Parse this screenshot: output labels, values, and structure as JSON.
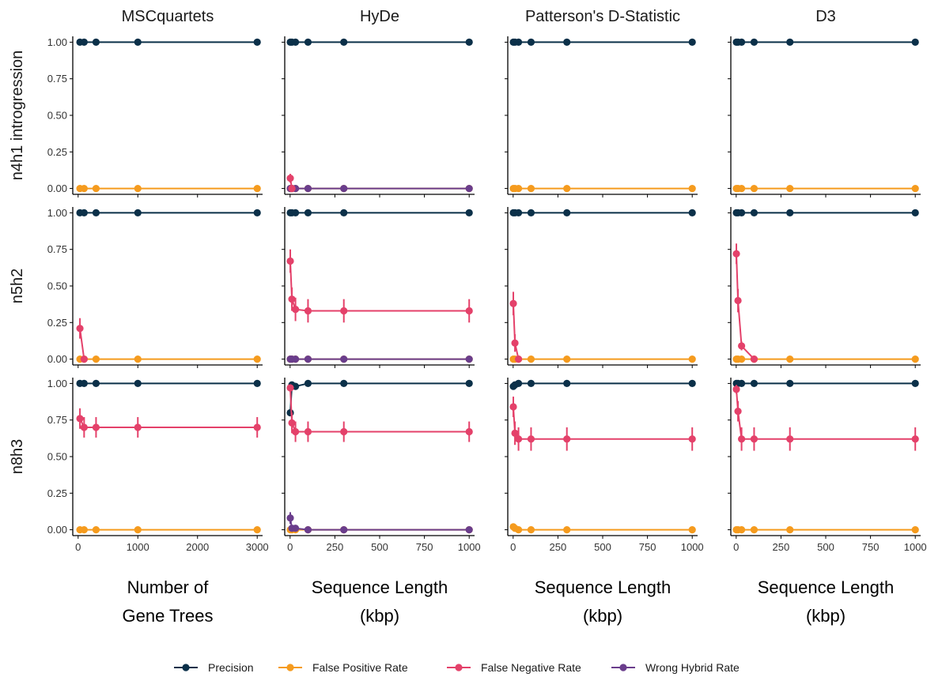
{
  "chart_data": {
    "type": "line",
    "columns": [
      {
        "strip": "MSCquartets",
        "x_title_lines": [
          "Number of",
          "Gene Trees"
        ],
        "x_ticks": [
          0,
          1000,
          2000,
          3000
        ],
        "x_tick_labels": [
          "0",
          "1000",
          "2000",
          "3000"
        ],
        "xlim": [
          -90,
          3090
        ]
      },
      {
        "strip": "HyDe",
        "x_title_lines": [
          "Sequence Length",
          "(kbp)"
        ],
        "x_ticks": [
          0,
          250,
          500,
          750,
          1000
        ],
        "x_tick_labels": [
          "0",
          "250",
          "500",
          "750",
          "1000"
        ],
        "xlim": [
          -30,
          1030
        ]
      },
      {
        "strip": "Patterson's D-Statistic",
        "x_title_lines": [
          "Sequence Length",
          "(kbp)"
        ],
        "x_ticks": [
          0,
          250,
          500,
          750,
          1000
        ],
        "x_tick_labels": [
          "0",
          "250",
          "500",
          "750",
          "1000"
        ],
        "xlim": [
          -30,
          1030
        ]
      },
      {
        "strip": "D3",
        "x_title_lines": [
          "Sequence Length",
          "(kbp)"
        ],
        "x_ticks": [
          0,
          250,
          500,
          750,
          1000
        ],
        "x_tick_labels": [
          "0",
          "250",
          "500",
          "750",
          "1000"
        ],
        "xlim": [
          -30,
          1030
        ]
      }
    ],
    "rows": [
      "n4h1 introgression",
      "n5h2",
      "n8h3"
    ],
    "y_ticks": [
      0,
      0.25,
      0.5,
      0.75,
      1
    ],
    "y_tick_labels": [
      "0.00",
      "0.25",
      "0.50",
      "0.75",
      "1.00"
    ],
    "ylim": [
      -0.04,
      1.04
    ],
    "legend": {
      "position": "bottom"
    },
    "series_styles": [
      {
        "name": "Precision",
        "color": "#0b3049"
      },
      {
        "name": "False Positive Rate",
        "color": "#f59b1e"
      },
      {
        "name": "False Negative Rate",
        "color": "#e4416a"
      },
      {
        "name": "Wrong Hybrid Rate",
        "color": "#6a3d8c"
      }
    ],
    "panels": [
      {
        "row": 0,
        "col": 0,
        "series": [
          {
            "name": "Precision",
            "x": [
              30,
              100,
              300,
              1000,
              3000
            ],
            "y": [
              1,
              1,
              1,
              1,
              1
            ]
          },
          {
            "name": "False Positive Rate",
            "x": [
              30,
              100,
              300,
              1000,
              3000
            ],
            "y": [
              0,
              0,
              0,
              0,
              0
            ]
          }
        ]
      },
      {
        "row": 0,
        "col": 1,
        "series": [
          {
            "name": "Precision",
            "x": [
              1,
              10,
              30,
              100,
              300,
              1000
            ],
            "y": [
              1,
              1,
              1,
              1,
              1,
              1
            ]
          },
          {
            "name": "False Positive Rate",
            "x": [
              1,
              10,
              30,
              100,
              300,
              1000
            ],
            "y": [
              0,
              0,
              0,
              0,
              0,
              0
            ]
          },
          {
            "name": "False Negative Rate",
            "x": [
              1,
              10
            ],
            "y": [
              0.07,
              0
            ],
            "err": [
              0.03,
              0
            ]
          },
          {
            "name": "Wrong Hybrid Rate",
            "x": [
              1,
              10,
              30,
              100,
              300,
              1000
            ],
            "y": [
              0,
              0,
              0,
              0,
              0,
              0
            ]
          }
        ]
      },
      {
        "row": 0,
        "col": 2,
        "series": [
          {
            "name": "Precision",
            "x": [
              1,
              10,
              30,
              100,
              300,
              1000
            ],
            "y": [
              1,
              1,
              1,
              1,
              1,
              1
            ]
          },
          {
            "name": "False Positive Rate",
            "x": [
              1,
              10,
              30,
              100,
              300,
              1000
            ],
            "y": [
              0,
              0,
              0,
              0,
              0,
              0
            ]
          }
        ]
      },
      {
        "row": 0,
        "col": 3,
        "series": [
          {
            "name": "Precision",
            "x": [
              1,
              10,
              30,
              100,
              300,
              1000
            ],
            "y": [
              1,
              1,
              1,
              1,
              1,
              1
            ]
          },
          {
            "name": "False Positive Rate",
            "x": [
              1,
              10,
              30,
              100,
              300,
              1000
            ],
            "y": [
              0,
              0,
              0,
              0,
              0,
              0
            ]
          }
        ]
      },
      {
        "row": 1,
        "col": 0,
        "series": [
          {
            "name": "Precision",
            "x": [
              30,
              100,
              300,
              1000,
              3000
            ],
            "y": [
              1,
              1,
              1,
              1,
              1
            ]
          },
          {
            "name": "False Positive Rate",
            "x": [
              30,
              100,
              300,
              1000,
              3000
            ],
            "y": [
              0,
              0,
              0,
              0,
              0
            ]
          },
          {
            "name": "False Negative Rate",
            "x": [
              30,
              100
            ],
            "y": [
              0.21,
              0
            ],
            "err": [
              0.07,
              0
            ]
          }
        ]
      },
      {
        "row": 1,
        "col": 1,
        "series": [
          {
            "name": "Precision",
            "x": [
              1,
              10,
              30,
              100,
              300,
              1000
            ],
            "y": [
              1,
              1,
              1,
              1,
              1,
              1
            ]
          },
          {
            "name": "False Positive Rate",
            "x": [
              1,
              10,
              30,
              100,
              300,
              1000
            ],
            "y": [
              0,
              0,
              0,
              0,
              0,
              0
            ]
          },
          {
            "name": "False Negative Rate",
            "x": [
              1,
              10,
              30,
              100,
              300,
              1000
            ],
            "y": [
              0.67,
              0.41,
              0.34,
              0.33,
              0.33,
              0.33
            ],
            "err": [
              0.08,
              0.08,
              0.08,
              0.08,
              0.08,
              0.08
            ]
          },
          {
            "name": "Wrong Hybrid Rate",
            "x": [
              1,
              10,
              30,
              100,
              300,
              1000
            ],
            "y": [
              0,
              0,
              0,
              0,
              0,
              0
            ]
          }
        ]
      },
      {
        "row": 1,
        "col": 2,
        "series": [
          {
            "name": "Precision",
            "x": [
              1,
              10,
              30,
              100,
              300,
              1000
            ],
            "y": [
              1,
              1,
              1,
              1,
              1,
              1
            ]
          },
          {
            "name": "False Positive Rate",
            "x": [
              1,
              10,
              30,
              100,
              300,
              1000
            ],
            "y": [
              0,
              0,
              0,
              0,
              0,
              0
            ]
          },
          {
            "name": "False Negative Rate",
            "x": [
              1,
              10,
              30
            ],
            "y": [
              0.38,
              0.11,
              0
            ],
            "err": [
              0.08,
              0.06,
              0
            ]
          }
        ]
      },
      {
        "row": 1,
        "col": 3,
        "series": [
          {
            "name": "Precision",
            "x": [
              1,
              10,
              30,
              100,
              300,
              1000
            ],
            "y": [
              1,
              1,
              1,
              1,
              1,
              1
            ]
          },
          {
            "name": "False Positive Rate",
            "x": [
              1,
              10,
              30,
              100,
              300,
              1000
            ],
            "y": [
              0,
              0,
              0,
              0,
              0,
              0
            ]
          },
          {
            "name": "False Negative Rate",
            "x": [
              1,
              10,
              30,
              100
            ],
            "y": [
              0.72,
              0.4,
              0.09,
              0
            ],
            "err": [
              0.07,
              0.08,
              0.03,
              0
            ]
          }
        ]
      },
      {
        "row": 2,
        "col": 0,
        "series": [
          {
            "name": "Precision",
            "x": [
              30,
              100,
              300,
              1000,
              3000
            ],
            "y": [
              1,
              1,
              1,
              1,
              1
            ]
          },
          {
            "name": "False Positive Rate",
            "x": [
              30,
              100,
              300,
              1000,
              3000
            ],
            "y": [
              0,
              0,
              0,
              0,
              0
            ]
          },
          {
            "name": "False Negative Rate",
            "x": [
              30,
              100,
              300,
              1000,
              3000
            ],
            "y": [
              0.76,
              0.7,
              0.7,
              0.7,
              0.7
            ],
            "err": [
              0.07,
              0.07,
              0.07,
              0.07,
              0.07
            ]
          }
        ]
      },
      {
        "row": 2,
        "col": 1,
        "series": [
          {
            "name": "Precision",
            "x": [
              1,
              10,
              30,
              100,
              300,
              1000
            ],
            "y": [
              0.8,
              0.99,
              0.98,
              1,
              1,
              1
            ]
          },
          {
            "name": "False Positive Rate",
            "x": [
              1,
              10,
              30,
              100,
              300,
              1000
            ],
            "y": [
              0,
              0,
              0,
              0,
              0,
              0
            ]
          },
          {
            "name": "False Negative Rate",
            "x": [
              1,
              10,
              30,
              100,
              300,
              1000
            ],
            "y": [
              0.97,
              0.73,
              0.67,
              0.67,
              0.67,
              0.67
            ],
            "err": [
              0.02,
              0.07,
              0.07,
              0.07,
              0.07,
              0.07
            ]
          },
          {
            "name": "Wrong Hybrid Rate",
            "x": [
              1,
              10,
              30,
              100,
              300,
              1000
            ],
            "y": [
              0.08,
              0.01,
              0.01,
              0,
              0,
              0
            ],
            "err": [
              0.04,
              0.01,
              0.01,
              0,
              0,
              0
            ]
          }
        ]
      },
      {
        "row": 2,
        "col": 2,
        "series": [
          {
            "name": "Precision",
            "x": [
              1,
              10,
              30,
              100,
              300,
              1000
            ],
            "y": [
              0.98,
              0.99,
              1,
              1,
              1,
              1
            ]
          },
          {
            "name": "False Positive Rate",
            "x": [
              1,
              10,
              30,
              100,
              300,
              1000
            ],
            "y": [
              0.02,
              0.01,
              0,
              0,
              0,
              0
            ]
          },
          {
            "name": "False Negative Rate",
            "x": [
              1,
              10,
              30,
              100,
              300,
              1000
            ],
            "y": [
              0.84,
              0.66,
              0.62,
              0.62,
              0.62,
              0.62
            ],
            "err": [
              0.07,
              0.08,
              0.08,
              0.08,
              0.08,
              0.08
            ]
          }
        ]
      },
      {
        "row": 2,
        "col": 3,
        "series": [
          {
            "name": "Precision",
            "x": [
              1,
              10,
              30,
              100,
              300,
              1000
            ],
            "y": [
              1,
              1,
              1,
              1,
              1,
              1
            ]
          },
          {
            "name": "False Positive Rate",
            "x": [
              1,
              10,
              30,
              100,
              300,
              1000
            ],
            "y": [
              0,
              0,
              0,
              0,
              0,
              0
            ]
          },
          {
            "name": "False Negative Rate",
            "x": [
              1,
              10,
              30,
              100,
              300,
              1000
            ],
            "y": [
              0.96,
              0.81,
              0.62,
              0.62,
              0.62,
              0.62
            ],
            "err": [
              0.03,
              0.07,
              0.08,
              0.08,
              0.08,
              0.08
            ]
          }
        ]
      }
    ]
  }
}
